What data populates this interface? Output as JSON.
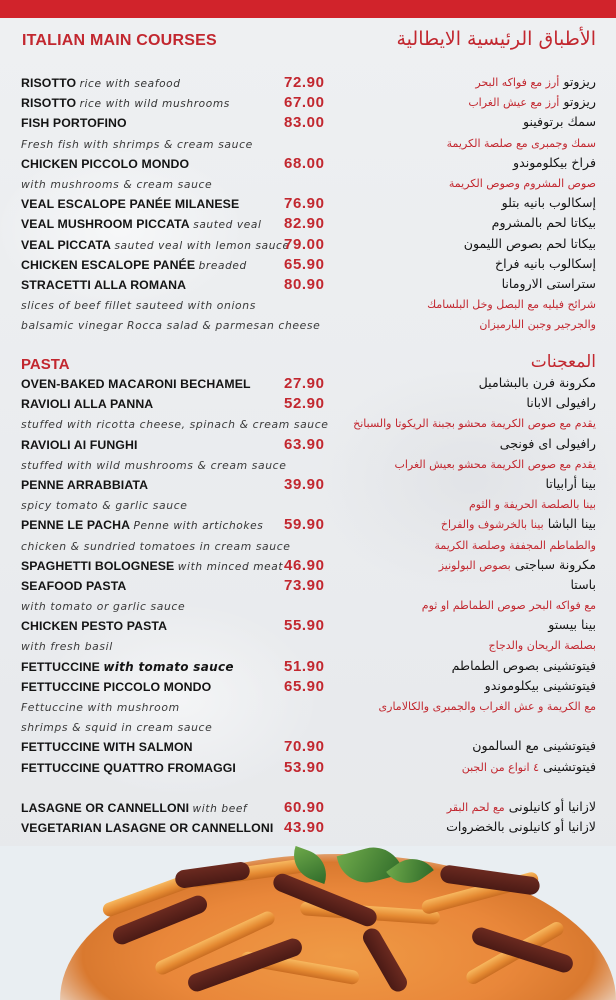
{
  "header": {
    "title_en": "ITALIAN MAIN COURSES",
    "title_ar": "الأطباق الرئيسية الايطالية"
  },
  "colors": {
    "accent": "#c2272f",
    "topbar": "#d1232b",
    "background": "#eceef0"
  },
  "main_courses": [
    {
      "n": "RISOTTO",
      "d": "rice with seafood",
      "p": "72.90",
      "a": "ريزوتو",
      "an": "أرز مع فواكه البحر"
    },
    {
      "n": "RISOTTO",
      "d": "rice with wild mushrooms",
      "p": "67.00",
      "a": "ريزوتو",
      "an": "أرز مع عيش الغراب"
    },
    {
      "n": "FISH PORTOFINO",
      "p": "83.00",
      "a": "سمك برتوفينو"
    },
    {
      "d": "Fresh fish with shrimps & cream sauce",
      "an": "سمك وجمبرى مع صلصة الكريمة"
    },
    {
      "n": "CHICKEN PICCOLO MONDO",
      "p": "68.00",
      "a": "فراخ بيكلوموندو"
    },
    {
      "d": "with mushrooms & cream sauce",
      "an": "صوص المشروم وصوص الكريمة"
    },
    {
      "n": "VEAL ESCALOPE PANÉE MILANESE",
      "p": "76.90",
      "a": "إسكالوب بانيه بتلو"
    },
    {
      "n": "VEAL MUSHROOM PICCATA",
      "d": "sauted veal",
      "p": "82.90",
      "a": "بيكاتا لحم بالمشروم"
    },
    {
      "n": "VEAL PICCATA",
      "d": "sauted veal with lemon sauce",
      "p": "79.00",
      "a": "بيكاتا لحم بصوص الليمون"
    },
    {
      "n": "CHICKEN ESCALOPE PANÉE",
      "d": "breaded",
      "p": "65.90",
      "a": "إسكالوب بانيه فراخ"
    },
    {
      "n": "STRACETTI ALLA ROMANA",
      "p": "80.90",
      "a": "ستراستى الارومانا"
    },
    {
      "d": "slices of beef fillet sauteed with onions",
      "an": "شرائح فيليه مع البصل وخل البلسامك"
    },
    {
      "d": "balsamic vinegar Rocca salad & parmesan cheese",
      "an": "والجرجير وجبن البارميزان"
    }
  ],
  "pasta_header": {
    "en": "PASTA",
    "ar": "المعجنات"
  },
  "pasta": [
    {
      "n": "OVEN-BAKED MACARONI BECHAMEL",
      "p": "27.90",
      "a": "مكرونة فرن بالبشاميل"
    },
    {
      "n": "RAVIOLI ALLA PANNA",
      "p": "52.90",
      "a": "رافيولى الابانا"
    },
    {
      "d": "stuffed with ricotta cheese, spinach & cream sauce",
      "an": "يقدم مع صوص الكريمة محشو بجبنة الريكوتا والسبانخ"
    },
    {
      "n": "RAVIOLI AI FUNGHI",
      "p": "63.90",
      "a": "رافيولى اى فونجى"
    },
    {
      "d": "stuffed with wild mushrooms & cream sauce",
      "an": "يقدم مع صوص الكريمة محشو بعيش الغراب"
    },
    {
      "n": "PENNE ARRABBIATA",
      "p": "39.90",
      "a": "بينا أرابياتا"
    },
    {
      "d": "spicy tomato & garlic sauce",
      "an": "بينا بالصلصة الحريفة و الثوم"
    },
    {
      "n": "PENNE LE PACHA",
      "d": "Penne with artichokes",
      "p": "59.90",
      "a": "بينا الباشا",
      "an": "بينا بالخرشوف والفراخ"
    },
    {
      "d": "chicken & sundried tomatoes in cream sauce",
      "an": "والطماطم المجففة وصلصة الكريمة"
    },
    {
      "n": "SPAGHETTI BOLOGNESE",
      "d": "with minced meat",
      "p": "46.90",
      "a": "مكرونة سباجتى",
      "an": "بصوص البولونيز"
    },
    {
      "n": "SEAFOOD PASTA",
      "p": "73.90",
      "a": "باستا"
    },
    {
      "d": "with tomato or garlic sauce",
      "an": "مع فواكه البحر  صوص الطماطم او ثوم"
    },
    {
      "n": "CHICKEN PESTO PASTA",
      "p": "55.90",
      "a": "بينا بيستو"
    },
    {
      "d": "with fresh basil",
      "an": "بصلصة الريحان والدجاج"
    },
    {
      "n": "FETTUCCINE",
      "d": "with tomato sauce",
      "strong": true,
      "p": "51.90",
      "a": "فيتوتشينى بصوص الطماطم"
    },
    {
      "n": "FETTUCCINE PICCOLO MONDO",
      "p": "65.90",
      "a": "فيتوتشينى بيكلوموندو"
    },
    {
      "d": "Fettuccine with mushroom",
      "an": "مع الكريمة و عش الغراب والجمبرى والكالامارى"
    },
    {
      "d": " shrimps & squid in cream sauce"
    },
    {
      "n": "FETTUCCINE WITH SALMON",
      "p": "70.90",
      "a": "فيتوتشينى مع السالمون"
    },
    {
      "n": "FETTUCCINE QUATTRO FROMAGGI",
      "p": "53.90",
      "a": "فيتوتشينى",
      "an": "٤ انواع من الجبن"
    },
    {},
    {
      "n": "LASAGNE OR CANNELLONI",
      "d": "with beef",
      "p": "60.90",
      "a": "لازانيا  أو كانيلونى",
      "an": "مع لحم البقر"
    },
    {
      "n": "VEGETARIAN LASAGNE OR CANNELLONI",
      "p": "43.90",
      "a": "لازانيا أو كانيلونى بالخضروات"
    }
  ],
  "photo": {
    "subject": "penne-pasta-dish-image"
  }
}
